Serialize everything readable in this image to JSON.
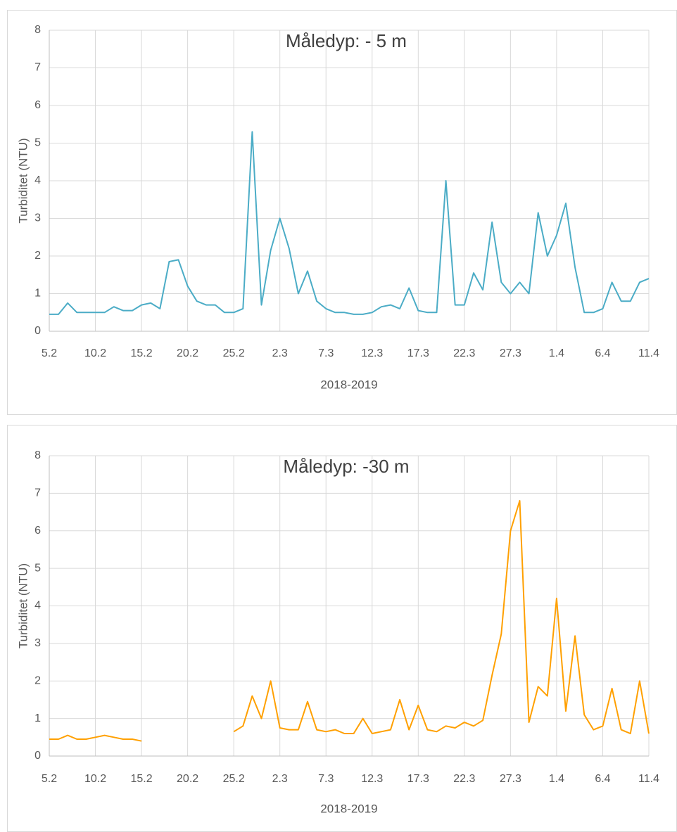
{
  "chart_data": [
    {
      "type": "line",
      "title": "Måledyp: - 5 m",
      "x_label": "2018-2019",
      "y_label": "Turbiditet (NTU)",
      "categories": [
        "5.2",
        null,
        null,
        null,
        null,
        "10.2",
        null,
        null,
        null,
        null,
        "15.2",
        null,
        null,
        null,
        null,
        "20.2",
        null,
        null,
        null,
        null,
        "25.2",
        null,
        null,
        null,
        null,
        "2.3",
        null,
        null,
        null,
        null,
        "7.3",
        null,
        null,
        null,
        null,
        "12.3",
        null,
        null,
        null,
        null,
        "17.3",
        null,
        null,
        null,
        null,
        "22.3",
        null,
        null,
        null,
        null,
        "27.3",
        null,
        null,
        null,
        null,
        "1.4",
        null,
        null,
        null,
        null,
        "6.4",
        null,
        null,
        null,
        null,
        "11.4"
      ],
      "series": [
        {
          "color": "#4bacc6",
          "values": [
            0.45,
            0.45,
            0.75,
            0.5,
            0.5,
            0.5,
            0.5,
            0.65,
            0.55,
            0.55,
            0.7,
            0.75,
            0.6,
            1.85,
            1.9,
            1.2,
            0.8,
            0.7,
            0.7,
            0.5,
            0.5,
            0.6,
            5.3,
            0.7,
            2.15,
            3.0,
            2.2,
            1.0,
            1.6,
            0.8,
            0.6,
            0.5,
            0.5,
            0.45,
            0.45,
            0.5,
            0.65,
            0.7,
            0.6,
            1.15,
            0.55,
            0.5,
            0.5,
            4.0,
            0.7,
            0.7,
            1.55,
            1.1,
            2.9,
            1.3,
            1.0,
            1.3,
            1.0,
            3.15,
            2.0,
            2.55,
            3.4,
            1.7,
            0.5,
            0.5,
            0.6,
            1.3,
            0.8,
            0.8,
            1.3,
            1.4
          ]
        }
      ],
      "ylim": [
        0,
        8
      ],
      "yticks": [
        0,
        1,
        2,
        3,
        4,
        5,
        6,
        7,
        8
      ],
      "grid": true
    },
    {
      "type": "line",
      "title": "Måledyp: -30 m",
      "x_label": "2018-2019",
      "y_label": "Turbiditet (NTU)",
      "categories": [
        "5.2",
        null,
        null,
        null,
        null,
        "10.2",
        null,
        null,
        null,
        null,
        "15.2",
        null,
        null,
        null,
        null,
        "20.2",
        null,
        null,
        null,
        null,
        "25.2",
        null,
        null,
        null,
        null,
        "2.3",
        null,
        null,
        null,
        null,
        "7.3",
        null,
        null,
        null,
        null,
        "12.3",
        null,
        null,
        null,
        null,
        "17.3",
        null,
        null,
        null,
        null,
        "22.3",
        null,
        null,
        null,
        null,
        "27.3",
        null,
        null,
        null,
        null,
        "1.4",
        null,
        null,
        null,
        null,
        "6.4",
        null,
        null,
        null,
        null,
        "11.4"
      ],
      "series": [
        {
          "color": "#ffa000",
          "values": [
            0.45,
            0.45,
            0.55,
            0.45,
            0.45,
            0.5,
            0.55,
            0.5,
            0.45,
            0.45,
            0.4,
            null,
            null,
            null,
            null,
            null,
            null,
            null,
            null,
            null,
            0.65,
            0.8,
            1.6,
            1.0,
            2.0,
            0.75,
            0.7,
            0.7,
            1.45,
            0.7,
            0.65,
            0.7,
            0.6,
            0.6,
            1.0,
            0.6,
            0.65,
            0.7,
            1.5,
            0.7,
            1.35,
            0.7,
            0.65,
            0.8,
            0.75,
            0.9,
            0.8,
            0.95,
            2.15,
            3.25,
            6.0,
            6.8,
            0.9,
            1.85,
            1.6,
            4.2,
            1.2,
            3.2,
            1.1,
            0.7,
            0.8,
            1.8,
            0.7,
            0.6,
            2.0,
            0.6
          ]
        }
      ],
      "ylim": [
        0,
        8
      ],
      "yticks": [
        0,
        1,
        2,
        3,
        4,
        5,
        6,
        7,
        8
      ],
      "grid": true
    }
  ]
}
